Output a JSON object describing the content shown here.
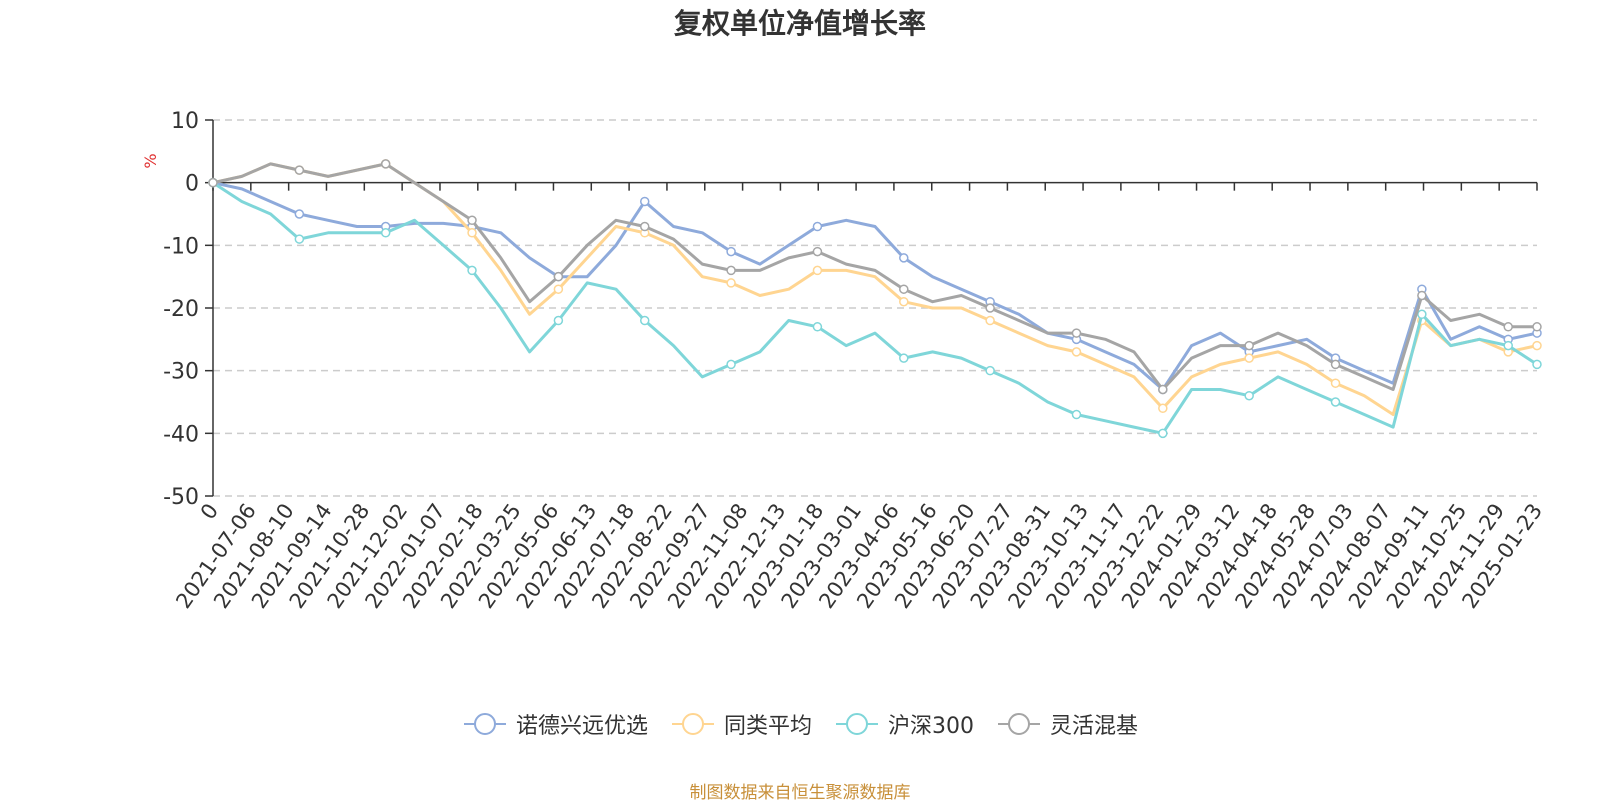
{
  "chart_data": {
    "type": "line",
    "title": "复权单位净值增长率",
    "ylabel": "%",
    "xlabel": "",
    "ylim": [
      -50,
      10
    ],
    "yticks": [
      10,
      0,
      -10,
      -20,
      -30,
      -40,
      -50
    ],
    "x_tick_labels": [
      "0",
      "2021-07-06",
      "2021-08-10",
      "2021-09-14",
      "2021-10-28",
      "2021-12-02",
      "2022-01-07",
      "2022-02-18",
      "2022-03-25",
      "2022-05-06",
      "2022-06-13",
      "2022-07-18",
      "2022-08-22",
      "2022-09-27",
      "2022-11-08",
      "2022-12-13",
      "2023-01-18",
      "2023-03-01",
      "2023-04-06",
      "2023-05-16",
      "2023-06-20",
      "2023-07-27",
      "2023-08-31",
      "2023-10-13",
      "2023-11-17",
      "2023-12-22",
      "2024-01-29",
      "2024-03-12",
      "2024-04-18",
      "2024-05-28",
      "2024-07-03",
      "2024-08-07",
      "2024-09-11",
      "2024-10-25",
      "2024-11-29",
      "2025-01-23"
    ],
    "grid": "dashed horizontal",
    "legend_position": "bottom",
    "series": [
      {
        "name": "诺德兴远优选",
        "color": "#8eaadb",
        "values": [
          0,
          -1,
          -3,
          -5,
          -6,
          -7,
          -7,
          -6.5,
          -6.5,
          -7,
          -8,
          -12,
          -15,
          -15,
          -10,
          -3,
          -7,
          -8,
          -11,
          -13,
          -10,
          -7,
          -6,
          -7,
          -12,
          -15,
          -17,
          -19,
          -21,
          -24,
          -25,
          -27,
          -29,
          -33,
          -26,
          -24,
          -27,
          -26,
          -25,
          -28,
          -30,
          -32,
          -17,
          -25,
          -23,
          -25,
          -24
        ]
      },
      {
        "name": "同类平均",
        "color": "#ffd591",
        "values": [
          0,
          1,
          3,
          2,
          1,
          2,
          3,
          0,
          -3,
          -8,
          -14,
          -21,
          -17,
          -12,
          -7,
          -8,
          -10,
          -15,
          -16,
          -18,
          -17,
          -14,
          -14,
          -15,
          -19,
          -20,
          -20,
          -22,
          -24,
          -26,
          -27,
          -29,
          -31,
          -36,
          -31,
          -29,
          -28,
          -27,
          -29,
          -32,
          -34,
          -37,
          -22,
          -26,
          -25,
          -27,
          -26
        ]
      },
      {
        "name": "沪深300",
        "color": "#7fd6d9",
        "values": [
          0,
          -3,
          -5,
          -9,
          -8,
          -8,
          -8,
          -6,
          -10,
          -14,
          -20,
          -27,
          -22,
          -16,
          -17,
          -22,
          -26,
          -31,
          -29,
          -27,
          -22,
          -23,
          -26,
          -24,
          -28,
          -27,
          -28,
          -30,
          -32,
          -35,
          -37,
          -38,
          -39,
          -40,
          -33,
          -33,
          -34,
          -31,
          -33,
          -35,
          -37,
          -39,
          -21,
          -26,
          -25,
          -26,
          -29
        ]
      },
      {
        "name": "灵活混基",
        "color": "#a5a5a5",
        "values": [
          0,
          1,
          3,
          2,
          1,
          2,
          3,
          0,
          -3,
          -6,
          -12,
          -19,
          -15,
          -10,
          -6,
          -7,
          -9,
          -13,
          -14,
          -14,
          -12,
          -11,
          -13,
          -14,
          -17,
          -19,
          -18,
          -20,
          -22,
          -24,
          -24,
          -25,
          -27,
          -33,
          -28,
          -26,
          -26,
          -24,
          -26,
          -29,
          -31,
          -33,
          -18,
          -22,
          -21,
          -23,
          -23
        ]
      }
    ]
  },
  "source_note": "制图数据来自恒生聚源数据库"
}
